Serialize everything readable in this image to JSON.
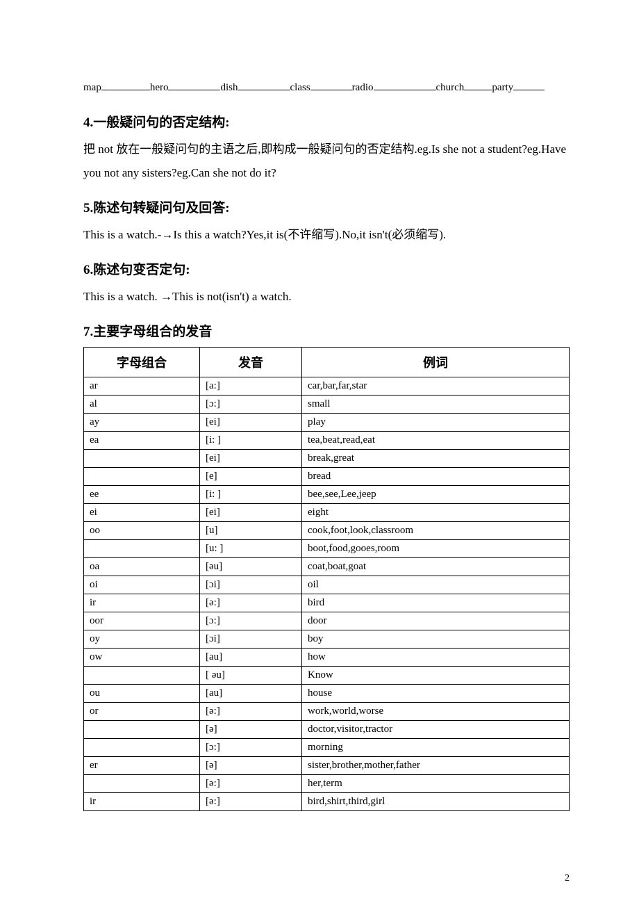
{
  "fill_words": [
    {
      "text": "map",
      "blank_w": 70
    },
    {
      "text": "hero",
      "blank_w": 75
    },
    {
      "text": "dish",
      "blank_w": 75
    },
    {
      "text": "class",
      "blank_w": 60
    },
    {
      "text": "radio",
      "blank_w": 90
    },
    {
      "text": "church",
      "blank_w": 40
    },
    {
      "text": "party",
      "blank_w": 45
    }
  ],
  "sec4": {
    "heading": "4.一般疑问句的否定结构:",
    "body": "把 not 放在一般疑问句的主语之后,即构成一般疑问句的否定结构.eg.Is she not a student?eg.Have you not any sisters?eg.Can she not do it?"
  },
  "sec5": {
    "heading": "5.陈述句转疑问句及回答:",
    "body": "This is a watch.-→Is this a watch?Yes,it is(不许缩写).No,it isn't(必须缩写)."
  },
  "sec6": {
    "heading": "6.陈述句变否定句:",
    "body": "This is a watch. →This is not(isn't) a watch."
  },
  "sec7": {
    "heading": "7.主要字母组合的发音"
  },
  "table": {
    "headers": [
      "字母组合",
      "发音",
      "例词"
    ],
    "rows": [
      {
        "c1": "ar",
        "c2": "[a:]",
        "c3": "car,bar,far,star"
      },
      {
        "c1": "al",
        "c2": "[ɔ:]",
        "c3": "small"
      },
      {
        "c1": "ay",
        "c2": "[ei]",
        "c3": "play"
      },
      {
        "c1": "ea",
        "c2": "[i: ]",
        "c3": "tea,beat,read,eat"
      },
      {
        "c1": "",
        "c2": "[ei]",
        "c3": "break,great"
      },
      {
        "c1": "",
        "c2": "[e]",
        "c3": "bread"
      },
      {
        "c1": "ee",
        "c2": "[i: ]",
        "c3": "bee,see,Lee,jeep"
      },
      {
        "c1": "ei",
        "c2": "[ei]",
        "c3": "eight"
      },
      {
        "c1": "oo",
        "c2": "[u]",
        "c3": "cook,foot,look,classroom"
      },
      {
        "c1": "",
        "c2": "[u: ]",
        "c3": "boot,food,gooes,room"
      },
      {
        "c1": "oa",
        "c2": "[əu]",
        "c3": "coat,boat,goat"
      },
      {
        "c1": "oi",
        "c2": "[ɔi]",
        "c3": "oil"
      },
      {
        "c1": "ir",
        "c2": "[ə:]",
        "c3": "bird"
      },
      {
        "c1": "oor",
        "c2": "[ɔ:]",
        "c3": "door"
      },
      {
        "c1": "oy",
        "c2": "[ɔi]",
        "c3": "boy"
      },
      {
        "c1": "ow",
        "c2": "[au]",
        "c3": "how"
      },
      {
        "c1": "",
        "c2": "[ əu]",
        "c3": "Know"
      },
      {
        "c1": "ou",
        "c2": "[au]",
        "c3": "house"
      },
      {
        "c1": "or",
        "c2": "[ə:]",
        "c3": "work,world,worse"
      },
      {
        "c1": "",
        "c2": "[ə]",
        "c3": "doctor,visitor,tractor"
      },
      {
        "c1": "",
        "c2": "[ɔ:]",
        "c3": "morning"
      },
      {
        "c1": "er",
        "c2": "[ə]",
        "c3": "sister,brother,mother,father"
      },
      {
        "c1": "",
        "c2": "[ə:]",
        "c3": "her,term"
      },
      {
        "c1": "ir",
        "c2": "[ə:]",
        "c3": "bird,shirt,third,girl"
      }
    ]
  },
  "page_number": "2"
}
